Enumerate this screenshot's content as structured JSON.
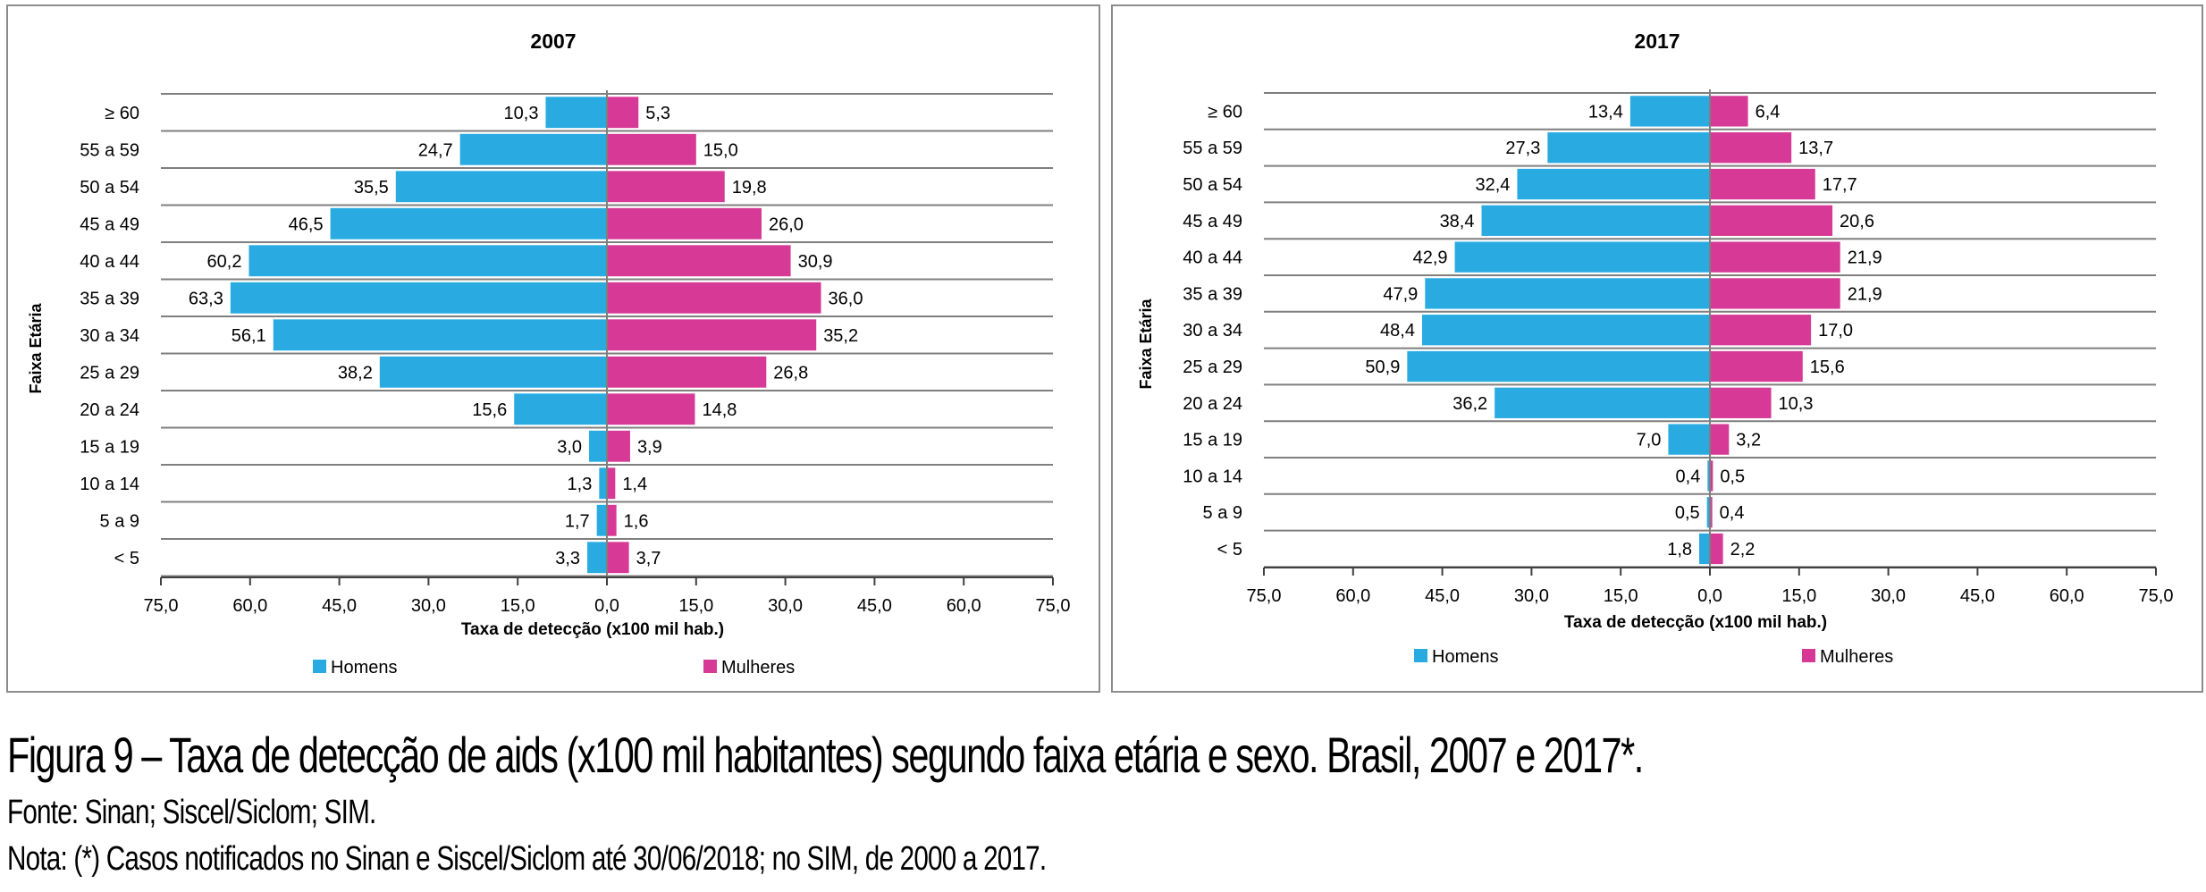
{
  "colors": {
    "homens": "#29abe2",
    "mulheres": "#d63a96",
    "grid": "#7f7f7f",
    "frame": "#8c8c8c",
    "axis": "#404040",
    "text": "#000000"
  },
  "chart_data": [
    {
      "type": "bar",
      "orientation": "horizontal-population-pyramid",
      "title": "2007",
      "ylabel": "Faixa Etária",
      "xlabel": "Taxa de detecção (x100 mil hab.)",
      "xlim": [
        -75,
        75
      ],
      "x_ticks": [
        "75,0",
        "60,0",
        "45,0",
        "30,0",
        "15,0",
        "0,0",
        "15,0",
        "30,0",
        "45,0",
        "60,0",
        "75,0"
      ],
      "categories": [
        "≥ 60",
        "55 a 59",
        "50 a 54",
        "45 a 49",
        "40 a 44",
        "35 a 39",
        "30 a 34",
        "25 a 29",
        "20 a 24",
        "15 a 19",
        "10 a 14",
        "5 a 9",
        "< 5"
      ],
      "series": [
        {
          "name": "Homens",
          "values": [
            10.3,
            24.7,
            35.5,
            46.5,
            60.2,
            63.3,
            56.1,
            38.2,
            15.6,
            3.0,
            1.3,
            1.7,
            3.3
          ],
          "labels": [
            "10,3",
            "24,7",
            "35,5",
            "46,5",
            "60,2",
            "63,3",
            "56,1",
            "38,2",
            "15,6",
            "3,0",
            "1,3",
            "1,7",
            "3,3"
          ]
        },
        {
          "name": "Mulheres",
          "values": [
            5.3,
            15.0,
            19.8,
            26.0,
            30.9,
            36.0,
            35.2,
            26.8,
            14.8,
            3.9,
            1.4,
            1.6,
            3.7
          ],
          "labels": [
            "5,3",
            "15,0",
            "19,8",
            "26,0",
            "30,9",
            "36,0",
            "35,2",
            "26,8",
            "14,8",
            "3,9",
            "1,4",
            "1,6",
            "3,7"
          ]
        }
      ],
      "legend": [
        "Homens",
        "Mulheres"
      ],
      "legend_position": "bottom"
    },
    {
      "type": "bar",
      "orientation": "horizontal-population-pyramid",
      "title": "2017",
      "ylabel": "Faixa Etária",
      "xlabel": "Taxa de detecção (x100 mil hab.)",
      "xlim": [
        -75,
        75
      ],
      "x_ticks": [
        "75,0",
        "60,0",
        "45,0",
        "30,0",
        "15,0",
        "0,0",
        "15,0",
        "30,0",
        "45,0",
        "60,0",
        "75,0"
      ],
      "categories": [
        "≥ 60",
        "55 a 59",
        "50 a 54",
        "45 a 49",
        "40 a 44",
        "35 a 39",
        "30 a 34",
        "25 a 29",
        "20 a 24",
        "15 a 19",
        "10 a 14",
        "5 a 9",
        "< 5"
      ],
      "series": [
        {
          "name": "Homens",
          "values": [
            13.4,
            27.3,
            32.4,
            38.4,
            42.9,
            47.9,
            48.4,
            50.9,
            36.2,
            7.0,
            0.4,
            0.5,
            1.8
          ],
          "labels": [
            "13,4",
            "27,3",
            "32,4",
            "38,4",
            "42,9",
            "47,9",
            "48,4",
            "50,9",
            "36,2",
            "7,0",
            "0,4",
            "0,5",
            "1,8"
          ]
        },
        {
          "name": "Mulheres",
          "values": [
            6.4,
            13.7,
            17.7,
            20.6,
            21.9,
            21.9,
            17.0,
            15.6,
            10.3,
            3.2,
            0.5,
            0.4,
            2.2
          ],
          "labels": [
            "6,4",
            "13,7",
            "17,7",
            "20,6",
            "21,9",
            "21,9",
            "17,0",
            "15,6",
            "10,3",
            "3,2",
            "0,5",
            "0,4",
            "2,2"
          ]
        }
      ],
      "legend": [
        "Homens",
        "Mulheres"
      ],
      "legend_position": "bottom"
    }
  ],
  "caption": {
    "title": "Figura 9 – Taxa de detecção de aids (x100 mil habitantes) segundo faixa etária e sexo. Brasil, 2007 e 2017*.",
    "source": "Fonte: Sinan; Siscel/Siclom; SIM.",
    "note": "Nota: (*) Casos notificados no Sinan e Siscel/Siclom até 30/06/2018; no SIM, de 2000 a 2017."
  }
}
